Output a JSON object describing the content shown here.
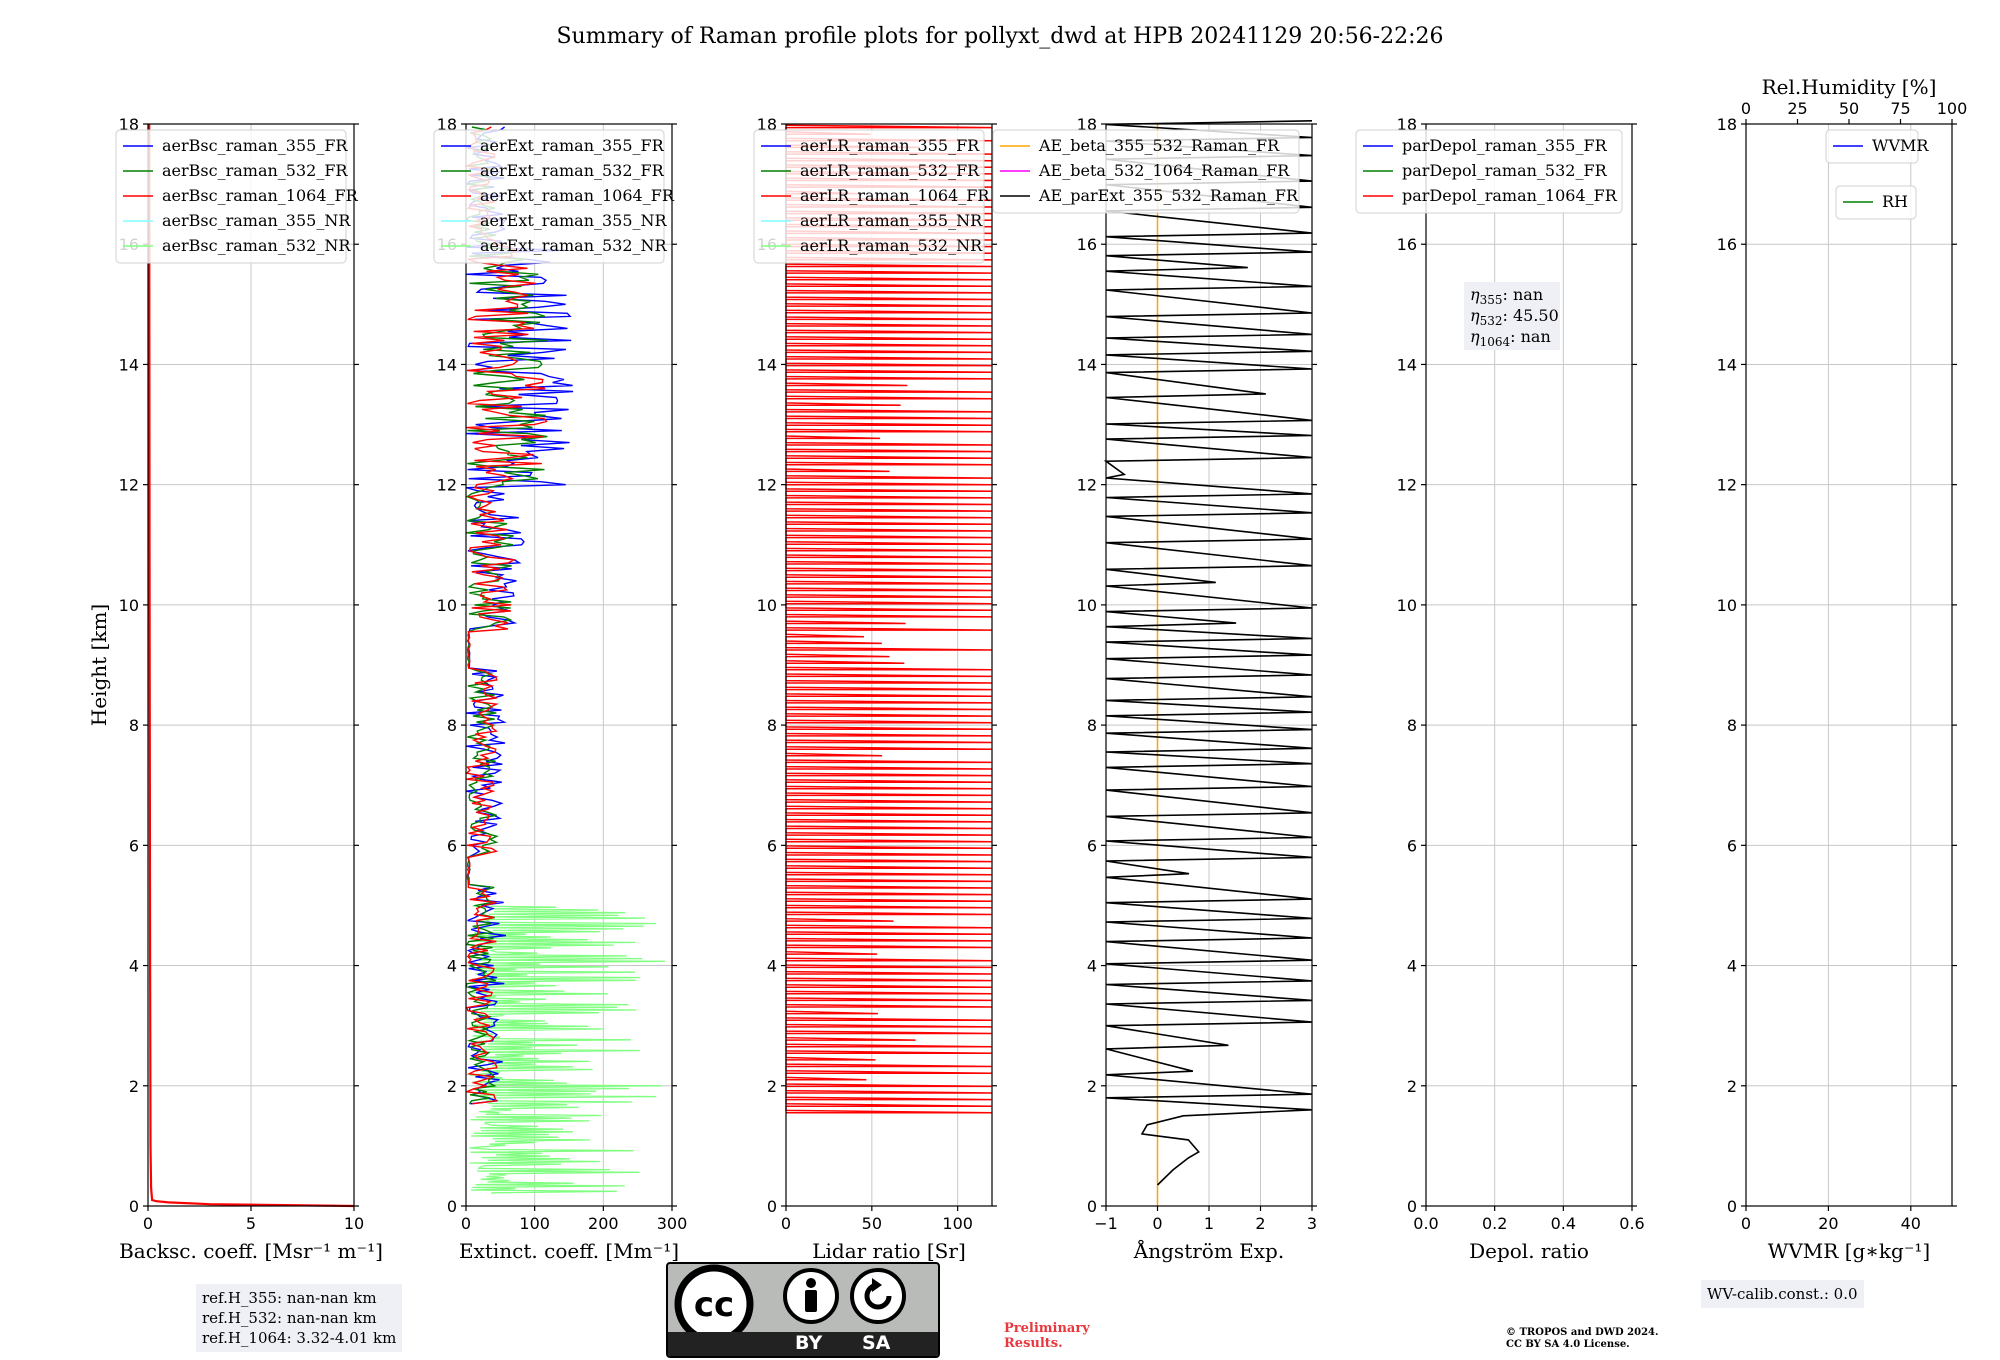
{
  "title": "Summary of Raman profile plots for pollyxt_dwd at HPB 20241129 20:56-22:26",
  "chart_data": [
    {
      "type": "line",
      "xlabel": "Backsc. coeff. [Msr⁻¹ m⁻¹]",
      "ylabel": "Height [km]",
      "xlim": [
        0,
        10
      ],
      "ylim": [
        0,
        18
      ],
      "xticks": [
        "0",
        "5",
        "10"
      ],
      "yticks": [
        "0",
        "2",
        "4",
        "6",
        "8",
        "10",
        "12",
        "14",
        "16",
        "18"
      ],
      "grid": true,
      "legend_position": "top-left",
      "series": [
        {
          "name": "aerBsc_raman_355_FR",
          "color": "#0000ff"
        },
        {
          "name": "aerBsc_raman_532_FR",
          "color": "#008000"
        },
        {
          "name": "aerBsc_raman_1064_FR",
          "color": "#ff0000",
          "x": [
            10,
            3,
            1,
            0.4,
            0.2,
            0.15,
            0.12,
            0.1,
            0.08,
            0.06
          ],
          "y": [
            0,
            0.03,
            0.06,
            0.08,
            0.1,
            0.3,
            1,
            4,
            10,
            18
          ]
        },
        {
          "name": "aerBsc_raman_355_NR",
          "color": "#80ffff"
        },
        {
          "name": "aerBsc_raman_532_NR",
          "color": "#80ff80"
        }
      ]
    },
    {
      "type": "line",
      "xlabel": "Extinct. coeff. [Mm⁻¹]",
      "xlim": [
        0,
        300
      ],
      "ylim": [
        0,
        18
      ],
      "xticks": [
        "0",
        "100",
        "200",
        "300"
      ],
      "yticks": [
        "0",
        "2",
        "4",
        "6",
        "8",
        "10",
        "12",
        "14",
        "16",
        "18"
      ],
      "grid": true,
      "legend_position": "top-left",
      "series": [
        {
          "name": "aerExt_raman_355_FR",
          "color": "#0000ff"
        },
        {
          "name": "aerExt_raman_532_FR",
          "color": "#008000"
        },
        {
          "name": "aerExt_raman_1064_FR",
          "color": "#ff0000"
        },
        {
          "name": "aerExt_raman_355_NR",
          "color": "#80ffff"
        },
        {
          "name": "aerExt_raman_532_NR",
          "color": "#80ff80"
        }
      ]
    },
    {
      "type": "line",
      "xlabel": "Lidar ratio [Sr]",
      "xlim": [
        0,
        120
      ],
      "ylim": [
        0,
        18
      ],
      "xticks": [
        "0",
        "50",
        "100"
      ],
      "yticks": [
        "0",
        "2",
        "4",
        "6",
        "8",
        "10",
        "12",
        "14",
        "16",
        "18"
      ],
      "grid": true,
      "legend_position": "top-left",
      "series": [
        {
          "name": "aerLR_raman_355_FR",
          "color": "#0000ff"
        },
        {
          "name": "aerLR_raman_532_FR",
          "color": "#008000"
        },
        {
          "name": "aerLR_raman_1064_FR",
          "color": "#ff0000"
        },
        {
          "name": "aerLR_raman_355_NR",
          "color": "#80ffff"
        },
        {
          "name": "aerLR_raman_532_NR",
          "color": "#80ff80"
        }
      ]
    },
    {
      "type": "line",
      "xlabel": "Ångström Exp.",
      "xlim": [
        -1,
        3
      ],
      "ylim": [
        0,
        18
      ],
      "xticks": [
        "−1",
        "0",
        "1",
        "2",
        "3"
      ],
      "yticks": [
        "0",
        "2",
        "4",
        "6",
        "8",
        "10",
        "12",
        "14",
        "16",
        "18"
      ],
      "grid": true,
      "legend_position": "top-right",
      "series": [
        {
          "name": "AE_beta_355_532_Raman_FR",
          "color": "#ffa500"
        },
        {
          "name": "AE_beta_532_1064_Raman_FR",
          "color": "#ff00ff"
        },
        {
          "name": "AE_parExt_355_532_Raman_FR",
          "color": "#000000"
        }
      ]
    },
    {
      "type": "line",
      "xlabel": "Depol. ratio",
      "xlim": [
        0,
        0.6
      ],
      "ylim": [
        0,
        18
      ],
      "xticks": [
        "0.0",
        "0.2",
        "0.4",
        "0.6"
      ],
      "yticks": [
        "0",
        "2",
        "4",
        "6",
        "8",
        "10",
        "12",
        "14",
        "16",
        "18"
      ],
      "grid": true,
      "legend_position": "top-left",
      "series": [
        {
          "name": "parDepol_raman_355_FR",
          "color": "#0000ff"
        },
        {
          "name": "parDepol_raman_532_FR",
          "color": "#008000"
        },
        {
          "name": "parDepol_raman_1064_FR",
          "color": "#ff0000"
        }
      ],
      "annotation": {
        "eta355": "nan",
        "eta532": "45.50",
        "eta1064": "nan"
      }
    },
    {
      "type": "line",
      "xlabel": "WVMR [g∗kg⁻¹]",
      "xlim": [
        0,
        50
      ],
      "ylim": [
        0,
        18
      ],
      "xticks": [
        "0",
        "20",
        "40"
      ],
      "yticks": [
        "0",
        "2",
        "4",
        "6",
        "8",
        "10",
        "12",
        "14",
        "16",
        "18"
      ],
      "grid": true,
      "top_xlabel": "Rel.Humidity [%]",
      "top_xlim": [
        0,
        100
      ],
      "top_xticks": [
        "0",
        "25",
        "50",
        "75",
        "100"
      ],
      "legend_position": "top-right",
      "series": [
        {
          "name": "WVMR",
          "color": "#0000ff"
        },
        {
          "name": "RH",
          "color": "#008000"
        }
      ]
    }
  ],
  "ref_heights": [
    "ref.H_355: nan-nan km",
    "ref.H_532: nan-nan km",
    "ref.H_1064: 3.32-4.01 km"
  ],
  "wv_calib": "WV-calib.const.: 0.0",
  "license_badge": {
    "by": "BY",
    "sa": "SA",
    "cc_text": "cc"
  },
  "preliminary": [
    "Preliminary",
    "Results."
  ],
  "copyright": [
    "© TROPOS and DWD 2024.",
    "CC BY SA 4.0 License."
  ]
}
